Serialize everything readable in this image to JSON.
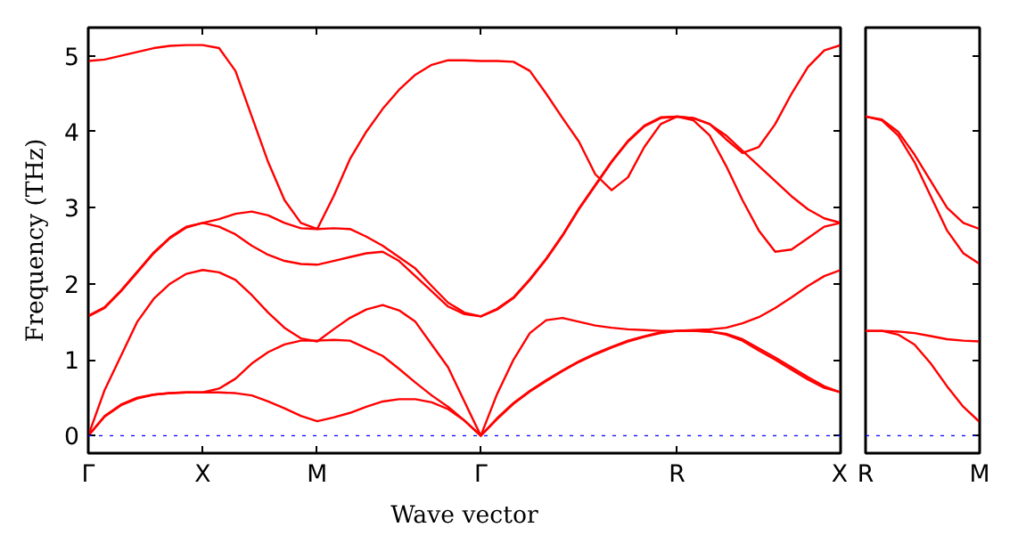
{
  "chart_data": [
    {
      "type": "line",
      "xlabel": "Wave vector",
      "ylabel": "Frequency (THz)",
      "ylim": [
        -0.23,
        5.37
      ],
      "categories": [
        "Γ",
        null,
        null,
        null,
        null,
        null,
        null,
        "X",
        null,
        null,
        null,
        null,
        null,
        null,
        "M",
        null,
        null,
        null,
        null,
        null,
        null,
        null,
        null,
        null,
        "Γ",
        null,
        null,
        null,
        null,
        null,
        null,
        null,
        null,
        null,
        null,
        null,
        "R",
        null,
        null,
        null,
        null,
        null,
        null,
        null,
        null,
        null,
        "X"
      ],
      "yticks": [
        0,
        1,
        2,
        3,
        4,
        5
      ],
      "grid": false,
      "marker": "none",
      "line_style": "solid",
      "ref_lines": [
        {
          "axis": "y",
          "value": 0,
          "color": "#0000ff",
          "line_style": "dotted"
        }
      ],
      "series": [
        {
          "color": "#ff0000",
          "values": [
            0,
            0.25,
            0.4,
            0.49,
            0.54,
            0.56,
            0.57,
            0.57,
            0.57,
            0.56,
            0.53,
            0.45,
            0.36,
            0.26,
            0.19,
            0.24,
            0.3,
            0.38,
            0.45,
            0.48,
            0.48,
            0.44,
            0.35,
            0.2,
            0,
            0.22,
            0.42,
            0.58,
            0.72,
            0.85,
            0.97,
            1.07,
            1.16,
            1.24,
            1.3,
            1.35,
            1.38,
            1.38,
            1.37,
            1.33,
            1.25,
            1.12,
            1.0,
            0.87,
            0.74,
            0.63,
            0.57
          ]
        },
        {
          "color": "#ff0000",
          "values": [
            0,
            0.26,
            0.41,
            0.5,
            0.54,
            0.56,
            0.57,
            0.57,
            0.62,
            0.75,
            0.95,
            1.1,
            1.2,
            1.25,
            1.25,
            1.26,
            1.25,
            1.15,
            1.05,
            0.88,
            0.7,
            0.53,
            0.38,
            0.2,
            0,
            0.23,
            0.43,
            0.59,
            0.73,
            0.86,
            0.98,
            1.08,
            1.17,
            1.25,
            1.31,
            1.36,
            1.38,
            1.38,
            1.37,
            1.34,
            1.27,
            1.15,
            1.03,
            0.9,
            0.77,
            0.65,
            0.57
          ]
        },
        {
          "color": "#ff0000",
          "values": [
            0,
            0.6,
            1.05,
            1.5,
            1.8,
            2.0,
            2.13,
            2.18,
            2.15,
            2.05,
            1.85,
            1.62,
            1.42,
            1.28,
            1.24,
            1.4,
            1.55,
            1.66,
            1.72,
            1.65,
            1.5,
            1.2,
            0.9,
            0.45,
            0,
            0.55,
            1.0,
            1.35,
            1.52,
            1.55,
            1.5,
            1.45,
            1.42,
            1.4,
            1.39,
            1.38,
            1.38,
            1.39,
            1.4,
            1.42,
            1.48,
            1.56,
            1.68,
            1.82,
            1.97,
            2.1,
            2.18
          ]
        },
        {
          "color": "#ff0000",
          "values": [
            1.57,
            1.68,
            1.9,
            2.15,
            2.4,
            2.6,
            2.74,
            2.8,
            2.75,
            2.65,
            2.5,
            2.38,
            2.3,
            2.26,
            2.25,
            2.3,
            2.35,
            2.4,
            2.42,
            2.3,
            2.1,
            1.9,
            1.7,
            1.6,
            1.57,
            1.66,
            1.81,
            2.05,
            2.32,
            2.63,
            2.98,
            3.29,
            3.6,
            3.87,
            4.07,
            4.18,
            4.2,
            4.15,
            3.95,
            3.55,
            3.1,
            2.7,
            2.42,
            2.45,
            2.6,
            2.75,
            2.8
          ]
        },
        {
          "color": "#ff0000",
          "values": [
            1.58,
            1.69,
            1.91,
            2.16,
            2.41,
            2.61,
            2.75,
            2.8,
            2.85,
            2.92,
            2.95,
            2.9,
            2.8,
            2.73,
            2.72,
            2.73,
            2.72,
            2.62,
            2.5,
            2.35,
            2.2,
            1.97,
            1.75,
            1.62,
            1.57,
            1.67,
            1.82,
            2.06,
            2.33,
            2.64,
            2.99,
            3.3,
            3.61,
            3.88,
            4.08,
            4.19,
            4.2,
            4.18,
            4.1,
            3.95,
            3.75,
            3.55,
            3.35,
            3.15,
            2.98,
            2.86,
            2.8
          ]
        },
        {
          "color": "#ff0000",
          "values": [
            4.93,
            4.95,
            5.0,
            5.05,
            5.1,
            5.13,
            5.14,
            5.14,
            5.1,
            4.8,
            4.2,
            3.6,
            3.1,
            2.8,
            2.72,
            3.15,
            3.64,
            4.0,
            4.3,
            4.55,
            4.75,
            4.88,
            4.94,
            4.94,
            4.93,
            4.93,
            4.92,
            4.8,
            4.5,
            4.18,
            3.87,
            3.44,
            3.23,
            3.4,
            3.8,
            4.1,
            4.2,
            4.18,
            4.1,
            3.9,
            3.72,
            3.8,
            4.1,
            4.5,
            4.85,
            5.07,
            5.14
          ]
        }
      ]
    },
    {
      "type": "line",
      "ylim": [
        -0.23,
        5.37
      ],
      "tick_labels": "x",
      "categories": [
        "R",
        null,
        null,
        null,
        null,
        null,
        null,
        "M"
      ],
      "yticks": [
        0,
        1,
        2,
        3,
        4,
        5
      ],
      "grid": false,
      "marker": "none",
      "line_style": "solid",
      "ref_lines": [
        {
          "axis": "y",
          "value": 0,
          "color": "#0000ff",
          "line_style": "dotted"
        }
      ],
      "series": [
        {
          "color": "#ff0000",
          "values": [
            1.38,
            1.38,
            1.33,
            1.2,
            0.95,
            0.65,
            0.38,
            0.18
          ]
        },
        {
          "color": "#ff0000",
          "values": [
            1.38,
            1.38,
            1.37,
            1.35,
            1.31,
            1.27,
            1.25,
            1.24
          ]
        },
        {
          "color": "#ff0000",
          "values": [
            4.2,
            4.15,
            3.95,
            3.6,
            3.15,
            2.7,
            2.4,
            2.26
          ]
        },
        {
          "color": "#ff0000",
          "values": [
            4.2,
            4.16,
            4.0,
            3.7,
            3.35,
            3.0,
            2.8,
            2.72
          ]
        }
      ]
    }
  ]
}
